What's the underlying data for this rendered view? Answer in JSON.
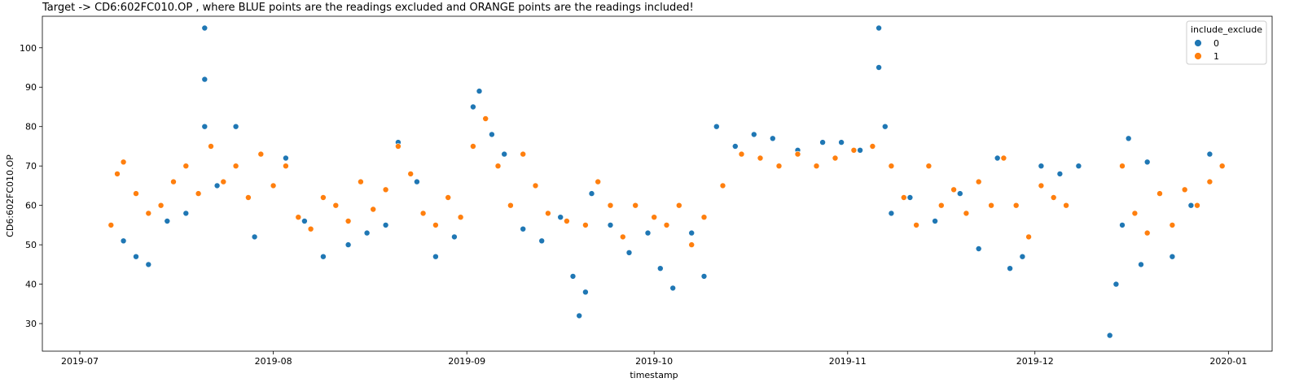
{
  "chart_data": {
    "type": "scatter",
    "title": "Target -> CD6:602FC010.OP , where BLUE points are the readings excluded and ORANGE points are the readings included!",
    "xlabel": "timestamp",
    "ylabel": "CD6:602FC010.OP",
    "xlim": [
      "2019-06-25",
      "2020-01-08"
    ],
    "ylim": [
      23,
      108
    ],
    "x_ticks": [
      "2019-07",
      "2019-08",
      "2019-09",
      "2019-10",
      "2019-11",
      "2019-12",
      "2020-01"
    ],
    "y_ticks": [
      30,
      40,
      50,
      60,
      70,
      80,
      90,
      100
    ],
    "legend": {
      "title": "include_exclude",
      "position": "top-right",
      "entries": [
        "0",
        "1"
      ]
    },
    "colors": {
      "0": "#1f77b4",
      "1": "#ff7f0e"
    },
    "series": [
      {
        "name": "0",
        "color": "#1f77b4",
        "x": [
          "2019-07-06",
          "2019-07-08",
          "2019-07-10",
          "2019-07-12",
          "2019-07-15",
          "2019-07-18",
          "2019-07-21",
          "2019-07-21",
          "2019-07-21",
          "2019-07-23",
          "2019-07-26",
          "2019-07-29",
          "2019-08-03",
          "2019-08-06",
          "2019-08-09",
          "2019-08-13",
          "2019-08-16",
          "2019-08-19",
          "2019-08-21",
          "2019-08-24",
          "2019-08-27",
          "2019-08-30",
          "2019-09-02",
          "2019-09-03",
          "2019-09-05",
          "2019-09-07",
          "2019-09-10",
          "2019-09-13",
          "2019-09-16",
          "2019-09-18",
          "2019-09-19",
          "2019-09-20",
          "2019-09-21",
          "2019-09-24",
          "2019-09-27",
          "2019-09-30",
          "2019-10-02",
          "2019-10-04",
          "2019-10-07",
          "2019-10-09",
          "2019-10-11",
          "2019-10-14",
          "2019-10-17",
          "2019-10-20",
          "2019-10-24",
          "2019-10-28",
          "2019-10-31",
          "2019-11-03",
          "2019-11-06",
          "2019-11-06",
          "2019-11-07",
          "2019-11-08",
          "2019-11-11",
          "2019-11-15",
          "2019-11-19",
          "2019-11-22",
          "2019-11-25",
          "2019-11-27",
          "2019-11-29",
          "2019-12-02",
          "2019-12-05",
          "2019-12-08",
          "2019-12-13",
          "2019-12-14",
          "2019-12-15",
          "2019-12-16",
          "2019-12-18",
          "2019-12-19",
          "2019-12-23",
          "2019-12-26",
          "2019-12-29",
          "2019-12-31"
        ],
        "y": [
          55,
          51,
          47,
          45,
          56,
          58,
          105,
          92,
          80,
          65,
          80,
          52,
          72,
          56,
          47,
          50,
          53,
          55,
          76,
          66,
          47,
          52,
          85,
          89,
          78,
          73,
          54,
          51,
          57,
          42,
          32,
          38,
          63,
          55,
          48,
          53,
          44,
          39,
          53,
          42,
          80,
          75,
          78,
          77,
          74,
          76,
          76,
          74,
          105,
          95,
          80,
          58,
          62,
          56,
          63,
          49,
          72,
          44,
          47,
          70,
          68,
          70,
          27,
          40,
          55,
          77,
          45,
          71,
          47,
          60,
          73,
          70
        ]
      },
      {
        "name": "1",
        "color": "#ff7f0e",
        "x": [
          "2019-07-06",
          "2019-07-07",
          "2019-07-08",
          "2019-07-10",
          "2019-07-12",
          "2019-07-14",
          "2019-07-16",
          "2019-07-18",
          "2019-07-20",
          "2019-07-22",
          "2019-07-24",
          "2019-07-26",
          "2019-07-28",
          "2019-07-30",
          "2019-08-01",
          "2019-08-03",
          "2019-08-05",
          "2019-08-07",
          "2019-08-09",
          "2019-08-11",
          "2019-08-13",
          "2019-08-15",
          "2019-08-17",
          "2019-08-19",
          "2019-08-21",
          "2019-08-23",
          "2019-08-25",
          "2019-08-27",
          "2019-08-29",
          "2019-08-31",
          "2019-09-02",
          "2019-09-04",
          "2019-09-06",
          "2019-09-08",
          "2019-09-10",
          "2019-09-12",
          "2019-09-14",
          "2019-09-17",
          "2019-09-20",
          "2019-09-22",
          "2019-09-24",
          "2019-09-26",
          "2019-09-28",
          "2019-10-01",
          "2019-10-03",
          "2019-10-05",
          "2019-10-07",
          "2019-10-09",
          "2019-10-12",
          "2019-10-15",
          "2019-10-18",
          "2019-10-21",
          "2019-10-24",
          "2019-10-27",
          "2019-10-30",
          "2019-11-02",
          "2019-11-05",
          "2019-11-08",
          "2019-11-10",
          "2019-11-12",
          "2019-11-14",
          "2019-11-16",
          "2019-11-18",
          "2019-11-20",
          "2019-11-22",
          "2019-11-24",
          "2019-11-26",
          "2019-11-28",
          "2019-11-30",
          "2019-12-02",
          "2019-12-04",
          "2019-12-06",
          "2019-12-15",
          "2019-12-17",
          "2019-12-19",
          "2019-12-21",
          "2019-12-23",
          "2019-12-25",
          "2019-12-27",
          "2019-12-29",
          "2019-12-31"
        ],
        "y": [
          55,
          68,
          71,
          63,
          58,
          60,
          66,
          70,
          63,
          75,
          66,
          70,
          62,
          73,
          65,
          70,
          57,
          54,
          62,
          60,
          56,
          66,
          59,
          64,
          75,
          68,
          58,
          55,
          62,
          57,
          75,
          82,
          70,
          60,
          73,
          65,
          58,
          56,
          55,
          66,
          60,
          52,
          60,
          57,
          55,
          60,
          50,
          57,
          65,
          73,
          72,
          70,
          73,
          70,
          72,
          74,
          75,
          70,
          62,
          55,
          70,
          60,
          64,
          58,
          66,
          60,
          72,
          60,
          52,
          65,
          62,
          60,
          70,
          58,
          53,
          63,
          55,
          64,
          60,
          66,
          70
        ]
      }
    ]
  }
}
